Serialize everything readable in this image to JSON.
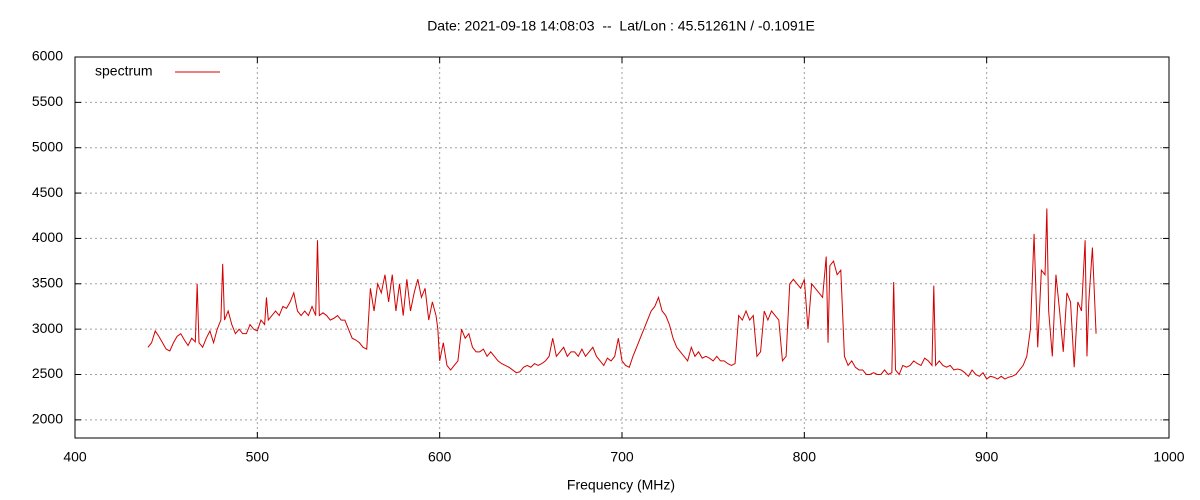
{
  "chart_data": {
    "type": "line",
    "title": "Date: 2021-09-18 14:08:03  --  Lat/Lon : 45.51261N / -0.1091E",
    "x_label": "Frequency (MHz)",
    "xlim": [
      400,
      1000
    ],
    "xticks": [
      400,
      500,
      600,
      700,
      800,
      900,
      1000
    ],
    "ylim": [
      1800,
      6000
    ],
    "yticks": [
      2000,
      2500,
      3000,
      3500,
      4000,
      4500,
      5000,
      5500,
      6000
    ],
    "grid": true,
    "legend": "top-left",
    "x": [
      440,
      442,
      444,
      446,
      448,
      450,
      452,
      454,
      456,
      458,
      460,
      462,
      464,
      466,
      467,
      468,
      470,
      472,
      474,
      476,
      478,
      480,
      481,
      482,
      484,
      486,
      488,
      490,
      492,
      494,
      496,
      498,
      500,
      502,
      504,
      505,
      506,
      508,
      510,
      512,
      514,
      516,
      518,
      520,
      522,
      524,
      526,
      528,
      530,
      532,
      533,
      534,
      536,
      538,
      540,
      542,
      544,
      546,
      548,
      550,
      552,
      554,
      556,
      558,
      560,
      562,
      564,
      566,
      568,
      570,
      572,
      574,
      576,
      578,
      580,
      582,
      584,
      586,
      588,
      590,
      592,
      594,
      596,
      598,
      599,
      600,
      602,
      604,
      606,
      608,
      610,
      612,
      614,
      616,
      618,
      620,
      622,
      624,
      626,
      628,
      630,
      632,
      634,
      636,
      638,
      640,
      642,
      644,
      646,
      648,
      650,
      652,
      654,
      656,
      658,
      660,
      662,
      664,
      666,
      668,
      670,
      672,
      674,
      676,
      678,
      680,
      682,
      684,
      686,
      688,
      690,
      692,
      694,
      696,
      698,
      700,
      702,
      704,
      706,
      708,
      710,
      712,
      714,
      716,
      718,
      720,
      722,
      724,
      726,
      728,
      730,
      732,
      734,
      736,
      738,
      740,
      742,
      744,
      746,
      748,
      750,
      752,
      754,
      756,
      758,
      760,
      762,
      764,
      766,
      768,
      770,
      772,
      774,
      776,
      778,
      780,
      782,
      784,
      786,
      788,
      790,
      792,
      794,
      796,
      798,
      800,
      802,
      804,
      806,
      808,
      810,
      812,
      813,
      814,
      816,
      818,
      820,
      822,
      824,
      826,
      828,
      830,
      832,
      834,
      836,
      838,
      840,
      842,
      844,
      846,
      848,
      849,
      850,
      852,
      854,
      856,
      858,
      860,
      862,
      864,
      866,
      868,
      870,
      871,
      872,
      874,
      876,
      878,
      880,
      882,
      884,
      886,
      888,
      890,
      892,
      894,
      896,
      898,
      900,
      902,
      904,
      906,
      908,
      910,
      912,
      914,
      916,
      918,
      920,
      922,
      924,
      926,
      928,
      930,
      932,
      933,
      934,
      936,
      938,
      940,
      942,
      944,
      946,
      948,
      950,
      952,
      954,
      955,
      956,
      958,
      960
    ],
    "series": [
      {
        "name": "spectrum",
        "color": "#d40000",
        "values": [
          2800,
          2850,
          2980,
          2920,
          2850,
          2780,
          2760,
          2850,
          2920,
          2950,
          2880,
          2820,
          2900,
          2860,
          3500,
          2850,
          2800,
          2900,
          2980,
          2850,
          3000,
          3100,
          3720,
          3100,
          3200,
          3050,
          2950,
          3000,
          2950,
          2950,
          3050,
          3000,
          2980,
          3100,
          3050,
          3350,
          3100,
          3150,
          3200,
          3150,
          3250,
          3230,
          3300,
          3400,
          3200,
          3150,
          3200,
          3150,
          3250,
          3150,
          3980,
          3150,
          3180,
          3150,
          3100,
          3120,
          3150,
          3100,
          3100,
          3000,
          2900,
          2880,
          2850,
          2800,
          2780,
          3450,
          3200,
          3500,
          3400,
          3600,
          3300,
          3600,
          3200,
          3500,
          3150,
          3550,
          3200,
          3400,
          3550,
          3350,
          3450,
          3100,
          3300,
          3150,
          3000,
          2650,
          2850,
          2600,
          2550,
          2600,
          2650,
          3000,
          2900,
          2950,
          2800,
          2750,
          2750,
          2780,
          2700,
          2750,
          2700,
          2650,
          2620,
          2600,
          2580,
          2550,
          2520,
          2530,
          2580,
          2600,
          2580,
          2620,
          2600,
          2620,
          2650,
          2700,
          2900,
          2700,
          2750,
          2800,
          2700,
          2750,
          2750,
          2700,
          2780,
          2700,
          2750,
          2800,
          2700,
          2650,
          2600,
          2680,
          2650,
          2700,
          2900,
          2650,
          2600,
          2580,
          2700,
          2800,
          2900,
          3000,
          3100,
          3200,
          3250,
          3350,
          3200,
          3150,
          3050,
          2900,
          2800,
          2750,
          2700,
          2650,
          2800,
          2700,
          2750,
          2680,
          2700,
          2680,
          2650,
          2700,
          2650,
          2650,
          2620,
          2600,
          2620,
          3150,
          3100,
          3200,
          3100,
          3150,
          2700,
          2750,
          3200,
          3100,
          3200,
          3150,
          3100,
          2650,
          2700,
          3500,
          3550,
          3500,
          3450,
          3550,
          3000,
          3500,
          3450,
          3400,
          3350,
          3800,
          2850,
          3700,
          3750,
          3600,
          3650,
          2700,
          2600,
          2650,
          2580,
          2550,
          2550,
          2500,
          2500,
          2520,
          2500,
          2500,
          2550,
          2500,
          2520,
          3520,
          2550,
          2500,
          2600,
          2580,
          2600,
          2650,
          2620,
          2600,
          2680,
          2650,
          2600,
          3480,
          2600,
          2650,
          2600,
          2580,
          2600,
          2550,
          2560,
          2550,
          2520,
          2480,
          2550,
          2500,
          2480,
          2520,
          2450,
          2480,
          2470,
          2450,
          2480,
          2450,
          2470,
          2480,
          2500,
          2550,
          2600,
          2700,
          3000,
          4050,
          2800,
          3650,
          3600,
          4330,
          3200,
          2700,
          3600,
          3200,
          2750,
          3400,
          3300,
          2580,
          3300,
          3200,
          3980,
          2700,
          3300,
          3900,
          2950
        ]
      }
    ]
  }
}
